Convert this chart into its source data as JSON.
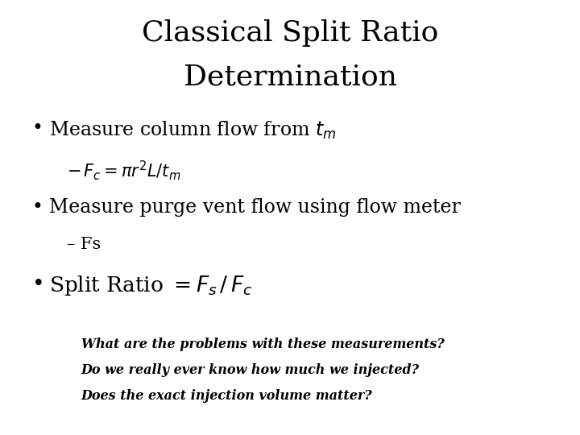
{
  "title_line1": "Classical Split Ratio",
  "title_line2": "Determination",
  "title_fontsize": 26,
  "bg_color": "#ffffff",
  "text_color": "#000000",
  "bullet_fontsize": 17,
  "sub_fontsize": 15,
  "bullet3_fontsize": 19,
  "italic_fontsize": 11.5,
  "italic_line1": "What are the problems with these measurements?",
  "italic_line2": "Do we really ever know how much we injected?",
  "italic_line3": "Does the exact injection volume matter?"
}
